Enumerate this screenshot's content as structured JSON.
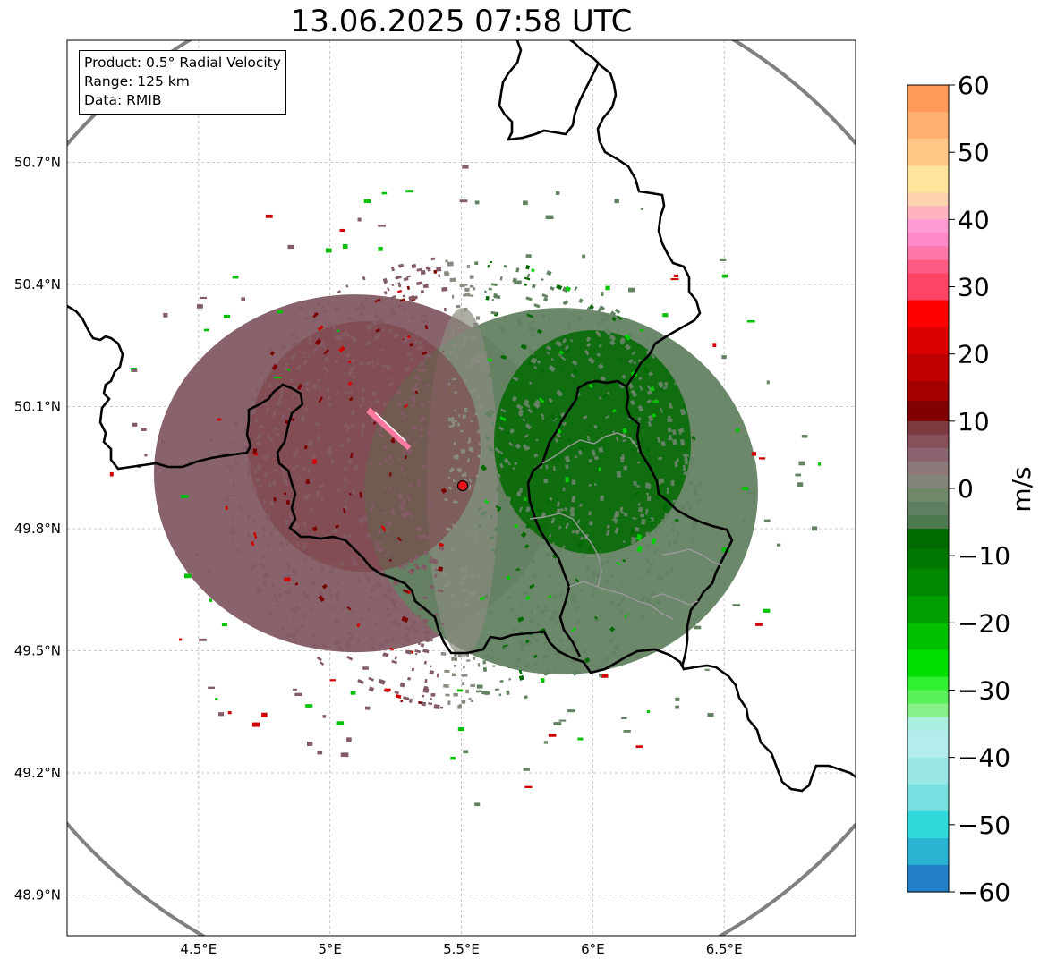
{
  "title": "13.06.2025 07:58 UTC",
  "info_box": {
    "line1": "Product: 0.5° Radial Velocity",
    "line2": "Range: 125 km",
    "line3": "Data: RMIB"
  },
  "map": {
    "lon_range": [
      4.0,
      7.0
    ],
    "lat_range": [
      48.8,
      51.0
    ],
    "lon_ticks": [
      4.5,
      5.0,
      5.5,
      6.0,
      6.5
    ],
    "lon_tick_labels": [
      "4.5°E",
      "5°E",
      "5.5°E",
      "6°E",
      "6.5°E"
    ],
    "lat_ticks": [
      48.9,
      49.2,
      49.5,
      49.8,
      50.1,
      50.4,
      50.7
    ],
    "lat_tick_labels": [
      "48.9°N",
      "49.2°N",
      "49.5°N",
      "49.8°N",
      "50.1°N",
      "50.4°N",
      "50.7°N"
    ],
    "gridlines": true,
    "radar_site": {
      "lon": 5.505,
      "lat": 49.914,
      "color": "#e8141c"
    },
    "range_ring_km": 125,
    "range_ring_color": "#808080",
    "border_color": "#000000",
    "inner_border_color": "#9a9a9a"
  },
  "colorbar": {
    "unit": "m/s",
    "min": -60,
    "max": 60,
    "ticks": [
      60,
      50,
      40,
      30,
      20,
      10,
      0,
      -10,
      -20,
      -30,
      -40,
      -50,
      -60
    ],
    "tick_labels": [
      "60",
      "50",
      "40",
      "30",
      "20",
      "10",
      "0",
      "−10",
      "−20",
      "−30",
      "−40",
      "−50",
      "−60"
    ],
    "stops": [
      {
        "from": 56,
        "to": 60,
        "color": "#ff9a5a"
      },
      {
        "from": 52,
        "to": 56,
        "color": "#ffb070"
      },
      {
        "from": 48,
        "to": 52,
        "color": "#ffc886"
      },
      {
        "from": 44,
        "to": 48,
        "color": "#ffe49c"
      },
      {
        "from": 42,
        "to": 44,
        "color": "#ffd2b0"
      },
      {
        "from": 40,
        "to": 42,
        "color": "#ffb2c0"
      },
      {
        "from": 38,
        "to": 40,
        "color": "#ff9ad2"
      },
      {
        "from": 36,
        "to": 38,
        "color": "#ff88c8"
      },
      {
        "from": 34,
        "to": 36,
        "color": "#ff76a8"
      },
      {
        "from": 32,
        "to": 34,
        "color": "#ff5a84"
      },
      {
        "from": 28,
        "to": 32,
        "color": "#ff4466"
      },
      {
        "from": 24,
        "to": 28,
        "color": "#ff0000"
      },
      {
        "from": 20,
        "to": 24,
        "color": "#dc0000"
      },
      {
        "from": 16,
        "to": 20,
        "color": "#c00000"
      },
      {
        "from": 13,
        "to": 16,
        "color": "#a40000"
      },
      {
        "from": 10,
        "to": 13,
        "color": "#820000"
      },
      {
        "from": 8,
        "to": 10,
        "color": "#7a3a3e"
      },
      {
        "from": 6,
        "to": 8,
        "color": "#87505a"
      },
      {
        "from": 4,
        "to": 6,
        "color": "#8c6470"
      },
      {
        "from": 2,
        "to": 4,
        "color": "#8c7878"
      },
      {
        "from": 0,
        "to": 2,
        "color": "#84857a"
      },
      {
        "from": -2,
        "to": 0,
        "color": "#6e8868"
      },
      {
        "from": -4,
        "to": -2,
        "color": "#5e8060"
      },
      {
        "from": -6,
        "to": -4,
        "color": "#4e7a50"
      },
      {
        "from": -9,
        "to": -6,
        "color": "#006a00"
      },
      {
        "from": -12,
        "to": -9,
        "color": "#007800"
      },
      {
        "from": -16,
        "to": -12,
        "color": "#008800"
      },
      {
        "from": -20,
        "to": -16,
        "color": "#00a000"
      },
      {
        "from": -24,
        "to": -20,
        "color": "#00c000"
      },
      {
        "from": -28,
        "to": -24,
        "color": "#00e000"
      },
      {
        "from": -30,
        "to": -28,
        "color": "#30f030"
      },
      {
        "from": -32,
        "to": -30,
        "color": "#5af05a"
      },
      {
        "from": -34,
        "to": -32,
        "color": "#88f088"
      },
      {
        "from": -36,
        "to": -34,
        "color": "#aaeee0"
      },
      {
        "from": -40,
        "to": -36,
        "color": "#b4ecec"
      },
      {
        "from": -44,
        "to": -40,
        "color": "#98e6e6"
      },
      {
        "from": -48,
        "to": -44,
        "color": "#78e0e0"
      },
      {
        "from": -52,
        "to": -48,
        "color": "#30dada"
      },
      {
        "from": -56,
        "to": -52,
        "color": "#28b4d2"
      },
      {
        "from": -60,
        "to": -56,
        "color": "#2280c8"
      }
    ]
  },
  "echo_colors": {
    "outbound_weak": "#835b64",
    "outbound_strong": "#7a0000",
    "inbound_weak": "#638262",
    "inbound_strong": "#006a00",
    "zero": "#8a8a80"
  }
}
